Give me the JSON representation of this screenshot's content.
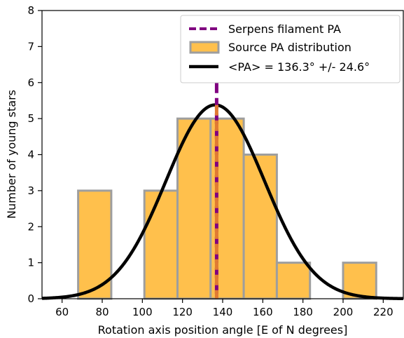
{
  "chart_data": {
    "type": "bar",
    "xlabel": "Rotation axis position angle [E of N degrees]",
    "ylabel": "Number of young stars",
    "xlim": [
      50,
      230
    ],
    "ylim": [
      0,
      8
    ],
    "xticks": [
      60,
      80,
      100,
      120,
      140,
      160,
      180,
      200,
      220
    ],
    "yticks": [
      0,
      1,
      2,
      3,
      4,
      5,
      6,
      7,
      8
    ],
    "grid": false,
    "legend_position": "top-right",
    "histogram": {
      "name": "Source PA distribution",
      "bin_width": 16.5,
      "bins": [
        {
          "x0": 68,
          "x1": 84.5,
          "count": 3
        },
        {
          "x0": 84.5,
          "x1": 101,
          "count": 0
        },
        {
          "x0": 101,
          "x1": 117.5,
          "count": 3
        },
        {
          "x0": 117.5,
          "x1": 134,
          "count": 5
        },
        {
          "x0": 134,
          "x1": 150.5,
          "count": 5
        },
        {
          "x0": 150.5,
          "x1": 167,
          "count": 4
        },
        {
          "x0": 167,
          "x1": 183.5,
          "count": 1
        },
        {
          "x0": 183.5,
          "x1": 200,
          "count": 0
        },
        {
          "x0": 200,
          "x1": 216.5,
          "count": 1
        }
      ],
      "fill_color": "#ffc04c",
      "edge_color": "#9e9e9e"
    },
    "gaussian": {
      "name": "<PA> = 136.3° +/- 24.6°",
      "mean": 136.3,
      "sigma": 24.6,
      "peak": 5.38,
      "color": "#000000"
    },
    "filament_line": {
      "name": "Serpens filament PA",
      "x": 137,
      "color": "#800080",
      "overlap_color": "#e07a33"
    },
    "legend_entries": [
      "Serpens filament PA",
      "Source PA distribution",
      "<PA> = 136.3° +/- 24.6°"
    ]
  }
}
